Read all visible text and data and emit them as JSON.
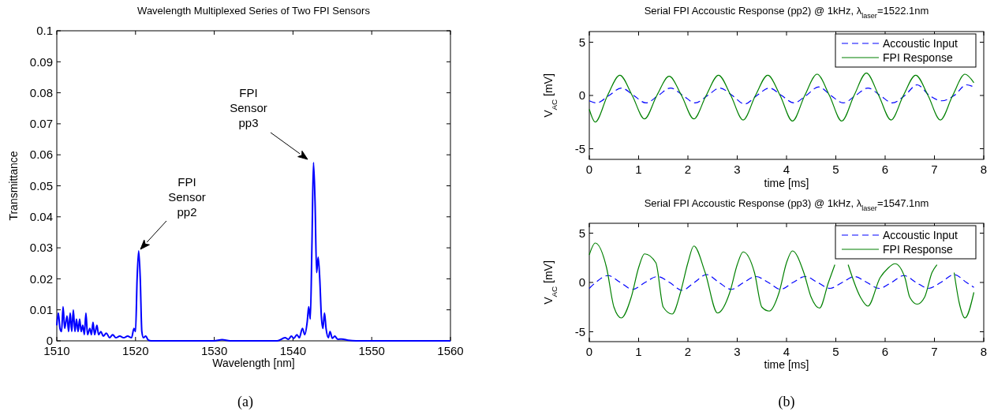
{
  "chart_data": [
    {
      "type": "line",
      "title": "Wavelength Multiplexed Series of Two FPI Sensors",
      "xlabel": "Wavelength [nm]",
      "ylabel": "Transmittance",
      "xlim": [
        1510,
        1560
      ],
      "xticks": [
        1510,
        1520,
        1530,
        1540,
        1550,
        1560
      ],
      "ylim": [
        0,
        0.1
      ],
      "yticks": [
        0,
        0.01,
        0.02,
        0.03,
        0.04,
        0.05,
        0.06,
        0.07,
        0.08,
        0.09,
        0.1
      ],
      "grid": false,
      "legend": false,
      "line_style": "solid",
      "series": [
        {
          "color": "#0000ff",
          "x": [
            1510,
            1510.2,
            1510.4,
            1510.6,
            1510.8,
            1511,
            1511.3,
            1511.5,
            1511.7,
            1511.9,
            1512.1,
            1512.3,
            1512.5,
            1512.7,
            1512.9,
            1513.1,
            1513.3,
            1513.5,
            1513.7,
            1513.9,
            1514.2,
            1514.4,
            1514.6,
            1514.8,
            1515.1,
            1515.3,
            1515.6,
            1515.9,
            1516.3,
            1516.7,
            1517.1,
            1517.5,
            1518,
            1518.5,
            1519,
            1519.5,
            1519.8,
            1520,
            1520.2,
            1520.4,
            1520.6,
            1520.8,
            1521,
            1521.3,
            1521.6,
            1522,
            1530,
            1531,
            1532,
            1538,
            1539,
            1539.4,
            1539.8,
            1540.1,
            1540.5,
            1540.8,
            1541.2,
            1541.5,
            1541.8,
            1542,
            1542.2,
            1542.4,
            1542.6,
            1542.8,
            1543,
            1543.2,
            1543.4,
            1543.6,
            1543.8,
            1544,
            1544.2,
            1544.5,
            1544.7,
            1545,
            1545.3,
            1545.7,
            1546.2,
            1547,
            1548,
            1560
          ],
          "values": [
            0.005,
            0.009,
            0.004,
            0.003,
            0.011,
            0.004,
            0.008,
            0.003,
            0.009,
            0.003,
            0.01,
            0.003,
            0.007,
            0.003,
            0.007,
            0.003,
            0.005,
            0.002,
            0.009,
            0.002,
            0.004,
            0.002,
            0.006,
            0.002,
            0.005,
            0.002,
            0.003,
            0.0015,
            0.0025,
            0.001,
            0.002,
            0.001,
            0.0015,
            0.001,
            0.0015,
            0.001,
            0.004,
            0.003,
            0.02,
            0.029,
            0.02,
            0.003,
            0.001,
            0.0015,
            0.0003,
            0,
            0,
            0.0004,
            0,
            0,
            0.001,
            0.0005,
            0.0015,
            0.0008,
            0.002,
            0.001,
            0.004,
            0.002,
            0.006,
            0.011,
            0.007,
            0.03,
            0.0575,
            0.045,
            0.022,
            0.027,
            0.02,
            0.008,
            0.004,
            0.009,
            0.004,
            0.001,
            0.003,
            0.0008,
            0.0015,
            0.0005,
            0.0006,
            0.0002,
            0,
            0
          ]
        }
      ],
      "annotations": [
        "FPI Sensor pp2",
        "FPI Sensor pp3",
        "(a)"
      ]
    },
    {
      "type": "line",
      "title": "Serial FPI Accoustic Response (pp2) @ 1kHz, λ$_{laser}$=1522.1nm",
      "xlabel": "time [ms]",
      "ylabel": "V$_{AC}$ [mV]",
      "xlim": [
        0,
        8
      ],
      "xticks": [
        0,
        1,
        2,
        3,
        4,
        5,
        6,
        7,
        8
      ],
      "ylim": [
        -6,
        6
      ],
      "yticks": [
        -5,
        0,
        5
      ],
      "grid": false,
      "legend": "top right",
      "series": [
        {
          "name": "Accoustic Input",
          "color": "#0000ff",
          "line_style": "dashed",
          "x": [
            0,
            0.15,
            0.4,
            0.65,
            0.9,
            1.15,
            1.4,
            1.65,
            1.9,
            2.15,
            2.4,
            2.65,
            2.9,
            3.15,
            3.4,
            3.65,
            3.9,
            4.15,
            4.4,
            4.65,
            4.9,
            5.15,
            5.4,
            5.65,
            5.9,
            6.15,
            6.4,
            6.65,
            6.9,
            7.15,
            7.4,
            7.65,
            7.8
          ],
          "values": [
            -0.5,
            -0.7,
            0,
            0.7,
            0,
            -0.7,
            0,
            0.7,
            0,
            -0.7,
            0,
            0.7,
            0,
            -0.8,
            0,
            0.7,
            0,
            -0.7,
            0,
            0.8,
            0,
            -0.7,
            0,
            0.7,
            0,
            -0.7,
            0,
            1.0,
            0,
            -0.5,
            0,
            1.0,
            0.8
          ]
        },
        {
          "name": "FPI Response",
          "color": "#008000",
          "line_style": "solid",
          "x": [
            0,
            0.12,
            0.37,
            0.62,
            0.87,
            1.12,
            1.37,
            1.62,
            1.87,
            2.12,
            2.37,
            2.62,
            2.87,
            3.12,
            3.37,
            3.62,
            3.87,
            4.12,
            4.37,
            4.62,
            4.87,
            5.12,
            5.37,
            5.62,
            5.87,
            6.12,
            6.37,
            6.62,
            6.87,
            7.12,
            7.37,
            7.62,
            7.8
          ],
          "values": [
            -1.3,
            -2.5,
            0,
            1.9,
            0,
            -2.2,
            0,
            1.8,
            0,
            -2.2,
            0,
            1.9,
            0,
            -2.3,
            0,
            1.9,
            0,
            -2.4,
            0,
            2.0,
            0,
            -2.4,
            0,
            2.1,
            0,
            -2.3,
            0,
            1.9,
            0,
            -2.3,
            0,
            2.0,
            1.2
          ]
        }
      ]
    },
    {
      "type": "line",
      "title": "Serial FPI Accoustic Response (pp3) @ 1kHz, λ$_{laser}$=1547.1nm",
      "xlabel": "time [ms]",
      "ylabel": "V$_{AC}$ [mV]",
      "xlim": [
        0,
        8
      ],
      "xticks": [
        0,
        1,
        2,
        3,
        4,
        5,
        6,
        7,
        8
      ],
      "ylim": [
        -6,
        6
      ],
      "yticks": [
        -5,
        0,
        5
      ],
      "grid": false,
      "legend": "top right",
      "series": [
        {
          "name": "Accoustic Input",
          "color": "#0000ff",
          "line_style": "dashed",
          "x": [
            0,
            0.13,
            0.38,
            0.63,
            0.88,
            1.13,
            1.38,
            1.63,
            1.88,
            2.13,
            2.38,
            2.63,
            2.88,
            3.13,
            3.38,
            3.63,
            3.88,
            4.13,
            4.38,
            4.63,
            4.88,
            5.13,
            5.38,
            5.63,
            5.88,
            6.13,
            6.38,
            6.63,
            6.88,
            7.13,
            7.4,
            7.65,
            7.8
          ],
          "values": [
            -0.6,
            0,
            0.7,
            0,
            -0.7,
            0,
            0.6,
            0,
            -0.8,
            0,
            0.8,
            0,
            -0.7,
            0,
            0.6,
            0,
            -0.7,
            0,
            0.6,
            0,
            -0.6,
            0,
            0.6,
            0,
            -0.6,
            0,
            0.7,
            0,
            -0.6,
            0,
            0.8,
            0,
            -0.5
          ]
        },
        {
          "name": "FPI Response",
          "color": "#008000",
          "line_style": "solid",
          "x": [
            0,
            0.12,
            0.35,
            0.5,
            0.65,
            0.85,
            1.0,
            1.12,
            1.35,
            1.5,
            1.68,
            1.85,
            2.0,
            2.12,
            2.35,
            2.6,
            2.85,
            3.0,
            3.12,
            3.35,
            3.5,
            3.65,
            3.85,
            4.0,
            4.12,
            4.35,
            4.5,
            4.67,
            4.85,
            4.98,
            5.1,
            5.25,
            5.5,
            5.65,
            5.9,
            6.05,
            6.2,
            6.4,
            6.5,
            6.65,
            6.8,
            6.95,
            7.05,
            7.2,
            7.4,
            7.5,
            7.62,
            7.8
          ],
          "values": [
            2.8,
            4.0,
            1.5,
            -2.5,
            -3.6,
            -1.5,
            1.5,
            2.9,
            2.0,
            -2.5,
            -3.2,
            -1.0,
            2.0,
            3.7,
            1.0,
            -3.1,
            -1.0,
            1.8,
            3.1,
            1.0,
            -2.5,
            -2.9,
            -1.0,
            2.0,
            3.2,
            1.0,
            -1.5,
            -2.6,
            0.0,
            1.8,
            null,
            1.8,
            -1.5,
            -2.4,
            0.5,
            1.4,
            1.9,
            0.5,
            -1.5,
            -2.2,
            -1.5,
            1.0,
            1.8,
            null,
            1.0,
            -2.0,
            -3.6,
            -1.0
          ]
        }
      ],
      "annotations": [
        "(b)"
      ]
    }
  ]
}
